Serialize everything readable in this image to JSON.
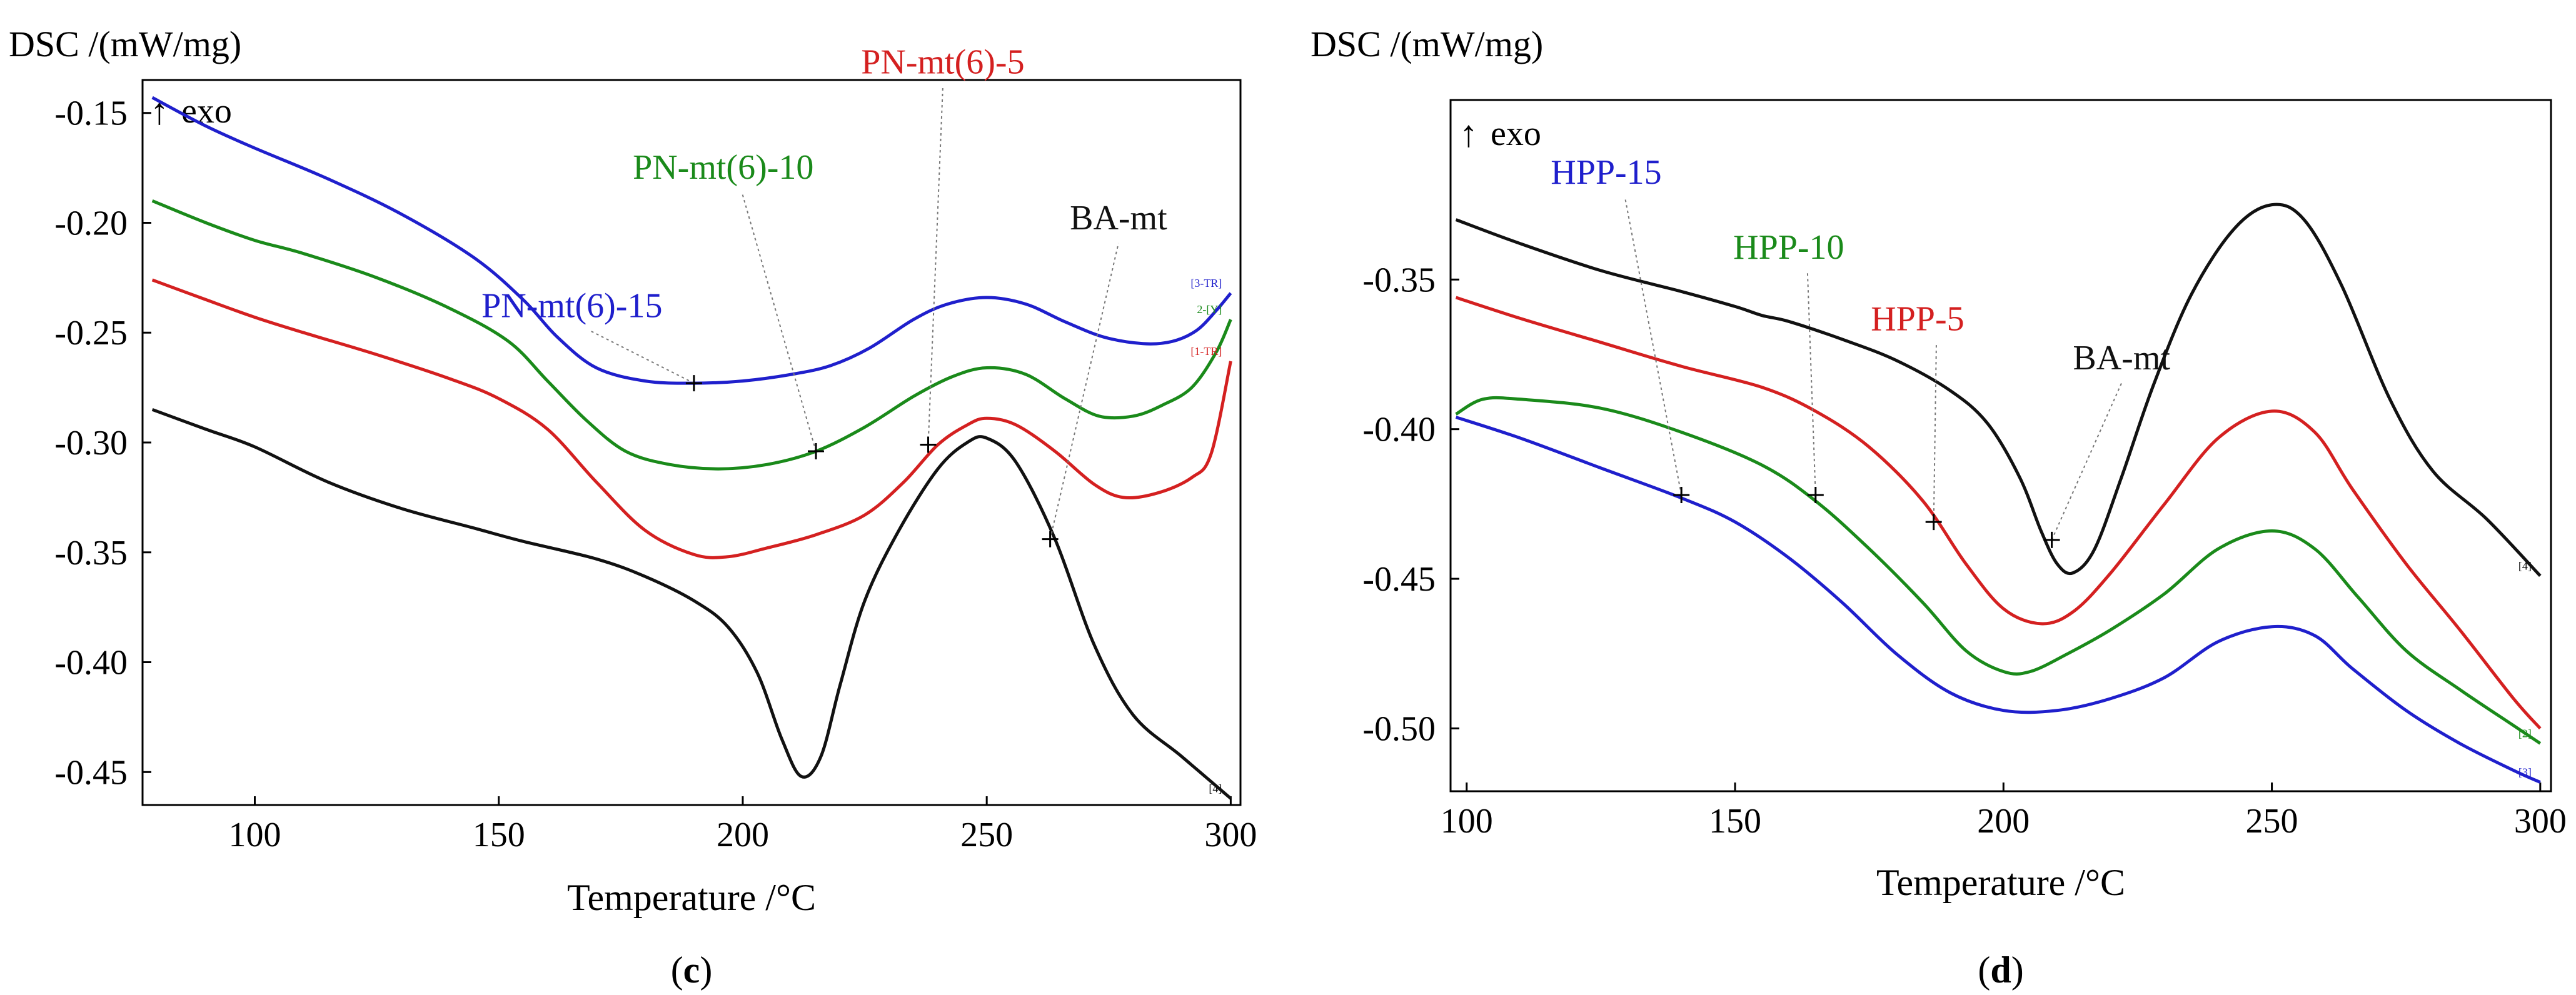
{
  "figure": {
    "panel_labels": [
      "c",
      "d"
    ]
  },
  "chart_data": [
    {
      "type": "line",
      "panel": "c",
      "panel_label": "c",
      "ylabel": "DSC /(mW/mg)",
      "xlabel": "Temperature /°C",
      "exo_marker": "exo",
      "xlim": [
        77,
        302
      ],
      "ylim": [
        -0.465,
        -0.135
      ],
      "xticks": [
        100,
        150,
        200,
        250,
        300
      ],
      "xtick_labels": [
        "100",
        "150",
        "200",
        "250",
        "300"
      ],
      "yticks": [
        -0.15,
        -0.2,
        -0.25,
        -0.3,
        -0.35,
        -0.4,
        -0.45
      ],
      "ytick_labels": [
        "-0.15",
        "-0.20",
        "-0.25",
        "-0.30",
        "-0.35",
        "-0.40",
        "-0.45"
      ],
      "series": [
        {
          "name": "PN-mt(6)-15",
          "color": "#1f1fcc",
          "end_tag": "[3-TR]",
          "points": [
            [
              79,
              -0.143
            ],
            [
              90,
              -0.156
            ],
            [
              100,
              -0.166
            ],
            [
              115,
              -0.18
            ],
            [
              130,
              -0.196
            ],
            [
              145,
              -0.216
            ],
            [
              155,
              -0.235
            ],
            [
              162,
              -0.252
            ],
            [
              170,
              -0.266
            ],
            [
              180,
              -0.272
            ],
            [
              190,
              -0.273
            ],
            [
              200,
              -0.272
            ],
            [
              210,
              -0.269
            ],
            [
              218,
              -0.265
            ],
            [
              226,
              -0.257
            ],
            [
              235,
              -0.244
            ],
            [
              242,
              -0.237
            ],
            [
              250,
              -0.234
            ],
            [
              258,
              -0.237
            ],
            [
              266,
              -0.245
            ],
            [
              274,
              -0.252
            ],
            [
              282,
              -0.255
            ],
            [
              288,
              -0.254
            ],
            [
              293,
              -0.249
            ],
            [
              297,
              -0.24
            ],
            [
              300,
              -0.232
            ]
          ],
          "marker": [
            190,
            -0.273
          ],
          "label": "PN-mt(6)-15",
          "label_at": [
            165,
            -0.243
          ]
        },
        {
          "name": "PN-mt(6)-10",
          "color": "#1a8a1a",
          "end_tag": "2-[Y]",
          "points": [
            [
              79,
              -0.19
            ],
            [
              90,
              -0.2
            ],
            [
              100,
              -0.208
            ],
            [
              110,
              -0.214
            ],
            [
              125,
              -0.225
            ],
            [
              140,
              -0.239
            ],
            [
              152,
              -0.254
            ],
            [
              160,
              -0.272
            ],
            [
              168,
              -0.29
            ],
            [
              176,
              -0.304
            ],
            [
              185,
              -0.31
            ],
            [
              195,
              -0.312
            ],
            [
              205,
              -0.31
            ],
            [
              215,
              -0.304
            ],
            [
              225,
              -0.293
            ],
            [
              235,
              -0.279
            ],
            [
              243,
              -0.27
            ],
            [
              250,
              -0.266
            ],
            [
              258,
              -0.269
            ],
            [
              266,
              -0.28
            ],
            [
              273,
              -0.288
            ],
            [
              280,
              -0.288
            ],
            [
              286,
              -0.283
            ],
            [
              292,
              -0.275
            ],
            [
              297,
              -0.259
            ],
            [
              300,
              -0.244
            ]
          ],
          "marker": [
            215,
            -0.304
          ],
          "label": "PN-mt(6)-10",
          "label_at": [
            196,
            -0.18
          ]
        },
        {
          "name": "PN-mt(6)-5",
          "color": "#d42020",
          "end_tag": "[1-TR]",
          "points": [
            [
              79,
              -0.226
            ],
            [
              90,
              -0.235
            ],
            [
              100,
              -0.243
            ],
            [
              110,
              -0.25
            ],
            [
              125,
              -0.26
            ],
            [
              140,
              -0.271
            ],
            [
              150,
              -0.28
            ],
            [
              160,
              -0.294
            ],
            [
              170,
              -0.318
            ],
            [
              180,
              -0.34
            ],
            [
              190,
              -0.351
            ],
            [
              197,
              -0.352
            ],
            [
              205,
              -0.348
            ],
            [
              215,
              -0.342
            ],
            [
              225,
              -0.333
            ],
            [
              233,
              -0.318
            ],
            [
              240,
              -0.301
            ],
            [
              246,
              -0.292
            ],
            [
              250,
              -0.289
            ],
            [
              256,
              -0.292
            ],
            [
              264,
              -0.304
            ],
            [
              272,
              -0.319
            ],
            [
              278,
              -0.325
            ],
            [
              285,
              -0.323
            ],
            [
              292,
              -0.316
            ],
            [
              296,
              -0.305
            ],
            [
              300,
              -0.263
            ]
          ],
          "marker": [
            238,
            -0.301
          ],
          "label": "PN-mt(6)-5",
          "label_at": [
            241,
            -0.132
          ]
        },
        {
          "name": "BA-mt",
          "color": "#111111",
          "end_tag": "[4]",
          "points": [
            [
              79,
              -0.285
            ],
            [
              90,
              -0.294
            ],
            [
              100,
              -0.302
            ],
            [
              115,
              -0.318
            ],
            [
              130,
              -0.33
            ],
            [
              145,
              -0.339
            ],
            [
              155,
              -0.345
            ],
            [
              170,
              -0.353
            ],
            [
              180,
              -0.361
            ],
            [
              190,
              -0.372
            ],
            [
              197,
              -0.384
            ],
            [
              203,
              -0.405
            ],
            [
              208,
              -0.435
            ],
            [
              212,
              -0.452
            ],
            [
              216,
              -0.443
            ],
            [
              220,
              -0.41
            ],
            [
              225,
              -0.372
            ],
            [
              232,
              -0.34
            ],
            [
              240,
              -0.312
            ],
            [
              246,
              -0.3
            ],
            [
              250,
              -0.298
            ],
            [
              256,
              -0.309
            ],
            [
              264,
              -0.344
            ],
            [
              272,
              -0.392
            ],
            [
              280,
              -0.424
            ],
            [
              290,
              -0.443
            ],
            [
              300,
              -0.462
            ]
          ],
          "marker": [
            263,
            -0.344
          ],
          "label": "BA-mt",
          "label_at": [
            277,
            -0.203
          ]
        }
      ]
    },
    {
      "type": "line",
      "panel": "d",
      "panel_label": "d",
      "ylabel": "DSC /(mW/mg)",
      "xlabel": "Temperature /°C",
      "exo_marker": "exo",
      "xlim": [
        97,
        302
      ],
      "ylim": [
        -0.521,
        -0.29
      ],
      "xticks": [
        100,
        150,
        200,
        250,
        300
      ],
      "xtick_labels": [
        "100",
        "150",
        "200",
        "250",
        "300"
      ],
      "yticks": [
        -0.35,
        -0.4,
        -0.45,
        -0.5
      ],
      "ytick_labels": [
        "-0.35",
        "-0.40",
        "-0.45",
        "-0.50"
      ],
      "series": [
        {
          "name": "BA-mt",
          "color": "#111111",
          "end_tag": "[4]",
          "points": [
            [
              98,
              -0.33
            ],
            [
              110,
              -0.338
            ],
            [
              125,
              -0.347
            ],
            [
              140,
              -0.354
            ],
            [
              150,
              -0.359
            ],
            [
              155,
              -0.362
            ],
            [
              160,
              -0.364
            ],
            [
              170,
              -0.37
            ],
            [
              180,
              -0.377
            ],
            [
              190,
              -0.387
            ],
            [
              197,
              -0.398
            ],
            [
              203,
              -0.416
            ],
            [
              207,
              -0.434
            ],
            [
              210,
              -0.445
            ],
            [
              213,
              -0.448
            ],
            [
              217,
              -0.44
            ],
            [
              222,
              -0.416
            ],
            [
              228,
              -0.385
            ],
            [
              235,
              -0.355
            ],
            [
              243,
              -0.333
            ],
            [
              250,
              -0.325
            ],
            [
              256,
              -0.33
            ],
            [
              263,
              -0.352
            ],
            [
              272,
              -0.39
            ],
            [
              280,
              -0.414
            ],
            [
              290,
              -0.43
            ],
            [
              300,
              -0.449
            ]
          ],
          "marker": [
            209,
            -0.437
          ],
          "label": "BA-mt",
          "label_at": [
            222,
            -0.38
          ]
        },
        {
          "name": "HPP-5",
          "color": "#d42020",
          "end_tag": "",
          "points": [
            [
              98,
              -0.356
            ],
            [
              110,
              -0.363
            ],
            [
              125,
              -0.371
            ],
            [
              140,
              -0.379
            ],
            [
              155,
              -0.386
            ],
            [
              165,
              -0.394
            ],
            [
              175,
              -0.406
            ],
            [
              185,
              -0.424
            ],
            [
              193,
              -0.445
            ],
            [
              200,
              -0.46
            ],
            [
              207,
              -0.465
            ],
            [
              213,
              -0.461
            ],
            [
              220,
              -0.448
            ],
            [
              230,
              -0.425
            ],
            [
              240,
              -0.403
            ],
            [
              250,
              -0.394
            ],
            [
              258,
              -0.401
            ],
            [
              265,
              -0.42
            ],
            [
              275,
              -0.445
            ],
            [
              285,
              -0.467
            ],
            [
              295,
              -0.49
            ],
            [
              300,
              -0.5
            ]
          ],
          "marker": [
            187,
            -0.431
          ],
          "label": "HPP-5",
          "label_at": [
            184,
            -0.367
          ]
        },
        {
          "name": "HPP-10",
          "color": "#1a8a1a",
          "end_tag": "[2]",
          "points": [
            [
              98,
              -0.395
            ],
            [
              103,
              -0.39
            ],
            [
              110,
              -0.39
            ],
            [
              125,
              -0.393
            ],
            [
              140,
              -0.401
            ],
            [
              155,
              -0.412
            ],
            [
              165,
              -0.424
            ],
            [
              175,
              -0.44
            ],
            [
              185,
              -0.458
            ],
            [
              193,
              -0.474
            ],
            [
              200,
              -0.481
            ],
            [
              205,
              -0.481
            ],
            [
              212,
              -0.475
            ],
            [
              220,
              -0.467
            ],
            [
              230,
              -0.455
            ],
            [
              240,
              -0.44
            ],
            [
              250,
              -0.434
            ],
            [
              258,
              -0.44
            ],
            [
              266,
              -0.456
            ],
            [
              275,
              -0.474
            ],
            [
              285,
              -0.487
            ],
            [
              295,
              -0.499
            ],
            [
              300,
              -0.505
            ]
          ],
          "marker": [
            165,
            -0.422
          ],
          "label": "HPP-10",
          "label_at": [
            160,
            -0.343
          ]
        },
        {
          "name": "HPP-15",
          "color": "#1f1fcc",
          "end_tag": "[3]",
          "points": [
            [
              98,
              -0.396
            ],
            [
              110,
              -0.403
            ],
            [
              125,
              -0.413
            ],
            [
              140,
              -0.423
            ],
            [
              150,
              -0.431
            ],
            [
              160,
              -0.443
            ],
            [
              170,
              -0.458
            ],
            [
              180,
              -0.475
            ],
            [
              190,
              -0.488
            ],
            [
              200,
              -0.494
            ],
            [
              210,
              -0.494
            ],
            [
              220,
              -0.49
            ],
            [
              230,
              -0.483
            ],
            [
              240,
              -0.471
            ],
            [
              250,
              -0.466
            ],
            [
              258,
              -0.469
            ],
            [
              265,
              -0.48
            ],
            [
              275,
              -0.494
            ],
            [
              285,
              -0.505
            ],
            [
              295,
              -0.514
            ],
            [
              300,
              -0.518
            ]
          ],
          "marker": [
            140,
            -0.422
          ],
          "label": "HPP-15",
          "label_at": [
            126,
            -0.318
          ]
        }
      ]
    }
  ]
}
